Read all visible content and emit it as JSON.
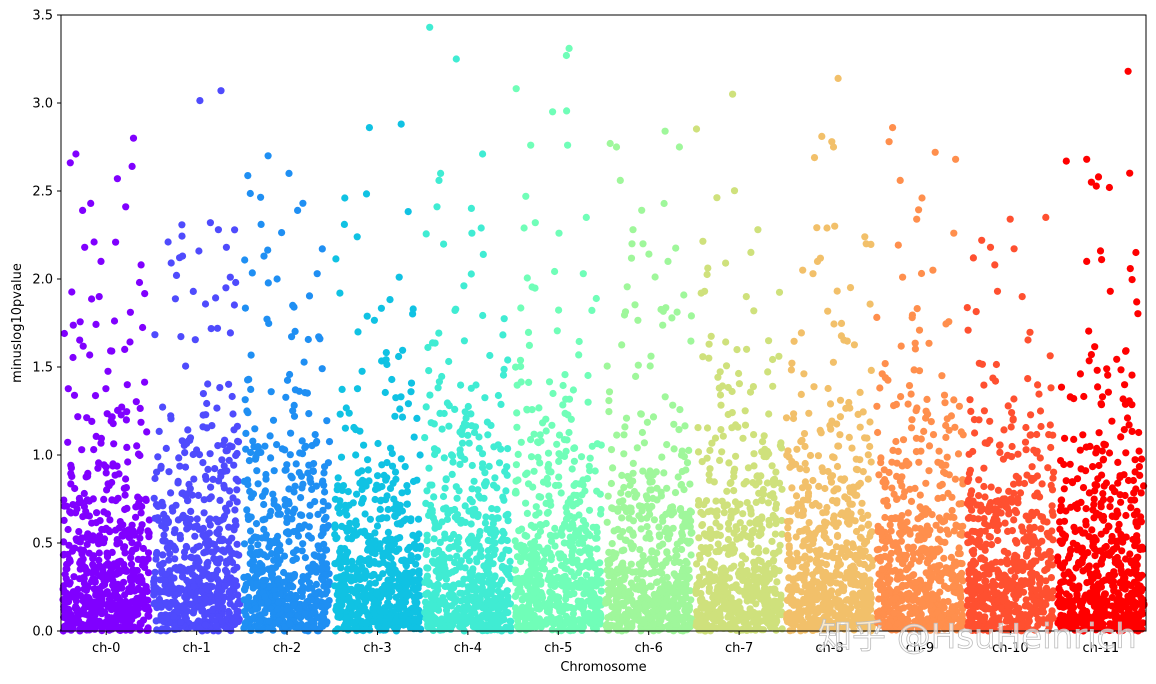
{
  "chart_data": {
    "type": "scatter",
    "title": "",
    "xlabel": "Chromosome",
    "ylabel": "minuslog10pvalue",
    "ylim": [
      0,
      3.5
    ],
    "yticks": [
      "0.0",
      "0.5",
      "1.0",
      "1.5",
      "2.0",
      "2.5",
      "3.0",
      "3.5"
    ],
    "grid": false,
    "colormap": "rainbow",
    "points_per_group_approx": 600,
    "categories": [
      "ch-0",
      "ch-1",
      "ch-2",
      "ch-3",
      "ch-4",
      "ch-5",
      "ch-6",
      "ch-7",
      "ch-8",
      "ch-9",
      "ch-10",
      "ch-11"
    ],
    "series": [
      {
        "category": "ch-0",
        "color": "#8000ff",
        "max_value": 2.8,
        "notable_values": [
          2.71,
          2.66,
          2.64,
          2.8,
          2.57,
          2.41,
          2.39,
          2.21,
          2.18,
          2.1,
          2.08,
          1.98,
          1.9
        ]
      },
      {
        "category": "ch-1",
        "color": "#4f4bfd",
        "max_value": 3.07,
        "notable_values": [
          3.07,
          2.32,
          2.28,
          2.21,
          2.18,
          2.13,
          2.01,
          1.98,
          1.95
        ]
      },
      {
        "category": "ch-2",
        "color": "#1f8ff3",
        "max_value": 2.7,
        "notable_values": [
          2.7,
          2.6,
          2.43,
          2.39,
          2.31,
          2.13,
          2.03,
          2.0
        ]
      },
      {
        "category": "ch-3",
        "color": "#10c2e3",
        "max_value": 2.88,
        "notable_values": [
          2.88,
          2.86,
          2.46,
          2.31,
          2.24,
          2.01,
          1.92
        ]
      },
      {
        "category": "ch-4",
        "color": "#40ecd3",
        "max_value": 3.43,
        "notable_values": [
          3.43,
          3.25,
          2.71,
          2.6,
          2.56,
          2.41,
          2.29,
          2.26,
          2.14
        ]
      },
      {
        "category": "ch-5",
        "color": "#70feb8",
        "max_value": 3.31,
        "notable_values": [
          3.31,
          3.27,
          2.95,
          2.76,
          2.76,
          2.47,
          2.35,
          2.32,
          2.29,
          2.26
        ]
      },
      {
        "category": "ch-6",
        "color": "#9ff79b",
        "max_value": 2.84,
        "notable_values": [
          2.84,
          2.77,
          2.75,
          2.75,
          2.56,
          2.28,
          2.2,
          2.2,
          2.1
        ]
      },
      {
        "category": "ch-7",
        "color": "#cfe17c",
        "max_value": 3.05,
        "notable_values": [
          3.05,
          2.28,
          1.93,
          1.92,
          1.9
        ]
      },
      {
        "category": "ch-8",
        "color": "#f2c06a",
        "max_value": 3.14,
        "notable_values": [
          3.14,
          2.81,
          2.78,
          2.75,
          2.69,
          2.3,
          2.29,
          2.24,
          2.2,
          2.1,
          2.05,
          2.03
        ]
      },
      {
        "category": "ch-9",
        "color": "#ff8f4d",
        "max_value": 2.86,
        "notable_values": [
          2.86,
          2.78,
          2.72,
          2.68,
          2.56,
          2.46,
          2.34,
          2.26,
          2.05,
          2.01
        ]
      },
      {
        "category": "ch-10",
        "color": "#ff5030",
        "max_value": 2.35,
        "notable_values": [
          2.35,
          2.34,
          2.22,
          2.18,
          2.12,
          2.08,
          1.93,
          1.9
        ]
      },
      {
        "category": "ch-11",
        "color": "#ff0000",
        "max_value": 3.18,
        "notable_values": [
          3.18,
          2.68,
          2.67,
          2.58,
          2.11,
          2.1,
          1.93
        ]
      }
    ]
  },
  "watermark": {
    "text": "知乎 @HsuHeinrich"
  }
}
